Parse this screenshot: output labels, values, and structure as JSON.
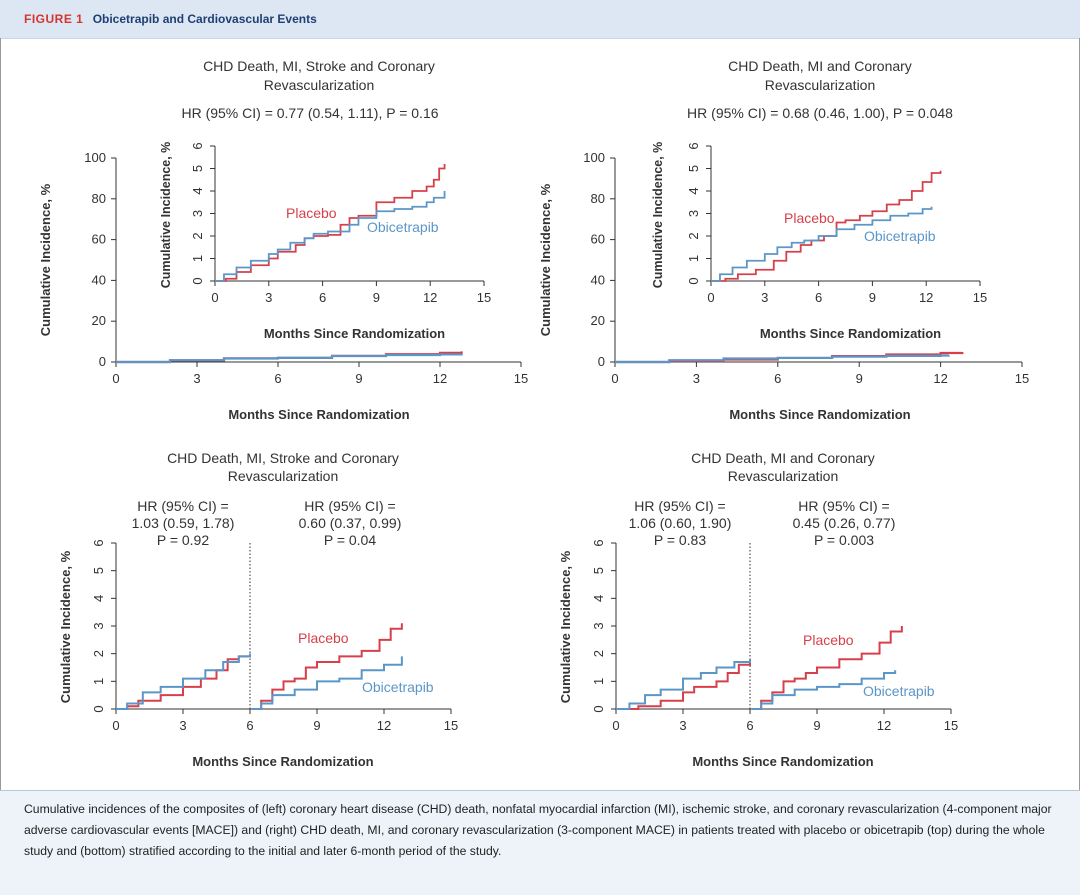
{
  "figure": {
    "label": "FIGURE 1",
    "title": "Obicetrapib and Cardiovascular Events",
    "caption": "Cumulative incidences of the composites of (left) coronary heart disease (CHD) death, nonfatal myocardial infarction (MI), ischemic stroke, and coronary revascularization (4-component major adverse cardiovascular events [MACE]) and (right) CHD death, MI, and coronary revascularization (3-component MACE) in patients treated with placebo or obicetrapib (top) during the whole study and (bottom) stratified according to the initial and later 6-month period of the study."
  },
  "colors": {
    "placebo": "#d6404a",
    "obicetrapib": "#5b96c8",
    "axis": "#333333",
    "title": "#1f3f73"
  },
  "chart_data": [
    {
      "id": "top-left",
      "type": "line",
      "title_lines": [
        "CHD Death, MI, Stroke and Coronary",
        "Revascularization"
      ],
      "hr_text": "HR (95% CI) = 0.77 (0.54, 1.11), P = 0.16",
      "xlabel": "Months Since Randomization",
      "ylabel": "Cumulative Incidence, %",
      "xlim": [
        0,
        15
      ],
      "ylim": [
        0,
        100
      ],
      "xticks": [
        0,
        3,
        6,
        9,
        12,
        15
      ],
      "yticks": [
        0,
        20,
        40,
        60,
        80,
        100
      ],
      "series": [
        {
          "name": "Placebo",
          "x": [
            0,
            2,
            4,
            6,
            8,
            10,
            12,
            12.8
          ],
          "y": [
            0,
            0.8,
            1.8,
            2.0,
            3.0,
            3.8,
            4.5,
            5.2
          ]
        },
        {
          "name": "Obicetrapib",
          "x": [
            0,
            2,
            4,
            6,
            8,
            10,
            12,
            12.8
          ],
          "y": [
            0,
            0.9,
            1.7,
            2.1,
            2.9,
            3.4,
            3.7,
            4.0
          ]
        }
      ],
      "inset": {
        "xlabel": "Months Since Randomization",
        "ylabel": "Cumulative Incidence, %",
        "xlim": [
          0,
          15
        ],
        "ylim": [
          0,
          6
        ],
        "xticks": [
          0,
          3,
          6,
          9,
          12,
          15
        ],
        "yticks": [
          0,
          1,
          2,
          3,
          4,
          5,
          6
        ],
        "series": [
          {
            "name": "Placebo",
            "x": [
              0,
              0.6,
              1.2,
              2.0,
              3.0,
              3.5,
              4.5,
              5.0,
              5.5,
              6.3,
              7.0,
              7.5,
              8.0,
              9.0,
              9.5,
              10.0,
              11.0,
              11.8,
              12.2,
              12.5,
              12.8
            ],
            "y": [
              0,
              0.1,
              0.4,
              0.7,
              1.0,
              1.3,
              1.6,
              1.9,
              2.0,
              2.05,
              2.5,
              2.8,
              2.9,
              3.5,
              3.5,
              3.7,
              4.0,
              4.2,
              4.5,
              5.0,
              5.2
            ]
          },
          {
            "name": "Obicetrapib",
            "x": [
              0,
              0.5,
              1.2,
              2.0,
              3.0,
              3.5,
              4.2,
              5.0,
              5.5,
              6.3,
              7.5,
              8.0,
              9.0,
              10.0,
              11.0,
              11.8,
              12.2,
              12.8
            ],
            "y": [
              0,
              0.3,
              0.6,
              0.9,
              1.2,
              1.4,
              1.7,
              1.9,
              2.1,
              2.2,
              2.5,
              2.8,
              3.1,
              3.2,
              3.3,
              3.5,
              3.7,
              4.0
            ]
          }
        ],
        "labels": [
          "Placebo",
          "Obicetrapib"
        ]
      }
    },
    {
      "id": "top-right",
      "type": "line",
      "title_lines": [
        "CHD Death, MI and Coronary",
        "Revascularization"
      ],
      "hr_text": "HR (95% CI) = 0.68 (0.46, 1.00), P = 0.048",
      "xlabel": "Months Since Randomization",
      "ylabel": "Cumulative Incidence, %",
      "xlim": [
        0,
        15
      ],
      "ylim": [
        0,
        100
      ],
      "xticks": [
        0,
        3,
        6,
        9,
        12,
        15
      ],
      "yticks": [
        0,
        20,
        40,
        60,
        80,
        100
      ],
      "series": [
        {
          "name": "Placebo",
          "x": [
            0,
            2,
            4,
            6,
            8,
            10,
            12,
            12.8
          ],
          "y": [
            0,
            0.5,
            1.2,
            2.0,
            2.9,
            3.7,
            4.4,
            4.9
          ]
        },
        {
          "name": "Obicetrapib",
          "x": [
            0,
            2,
            4,
            6,
            8,
            10,
            12,
            12.3
          ],
          "y": [
            0,
            0.9,
            1.7,
            2.0,
            2.6,
            3.0,
            3.2,
            3.3
          ]
        }
      ],
      "inset": {
        "xlabel": "Months Since Randomization",
        "ylabel": "Cumulative Incidence, %",
        "xlim": [
          0,
          15
        ],
        "ylim": [
          0,
          6
        ],
        "xticks": [
          0,
          3,
          6,
          9,
          12,
          15
        ],
        "yticks": [
          0,
          1,
          2,
          3,
          4,
          5,
          6
        ],
        "series": [
          {
            "name": "Placebo",
            "x": [
              0,
              0.8,
              1.5,
              2.5,
              3.5,
              4.2,
              5.0,
              5.6,
              6.3,
              7.0,
              7.5,
              8.3,
              9.0,
              9.8,
              10.5,
              11.2,
              11.8,
              12.3,
              12.8
            ],
            "y": [
              0,
              0.1,
              0.3,
              0.5,
              0.9,
              1.3,
              1.6,
              1.8,
              2.0,
              2.6,
              2.7,
              2.9,
              3.1,
              3.4,
              3.6,
              4.0,
              4.4,
              4.8,
              4.9
            ]
          },
          {
            "name": "Obicetrapib",
            "x": [
              0,
              0.5,
              1.2,
              2.0,
              3.0,
              3.7,
              4.5,
              5.2,
              6.0,
              7.0,
              8.0,
              9.0,
              10.0,
              11.0,
              11.8,
              12.3
            ],
            "y": [
              0,
              0.3,
              0.6,
              0.9,
              1.2,
              1.5,
              1.7,
              1.8,
              2.0,
              2.3,
              2.5,
              2.7,
              2.9,
              3.0,
              3.2,
              3.3
            ]
          }
        ],
        "labels": [
          "Placebo",
          "Obicetrapib"
        ]
      }
    },
    {
      "id": "bottom-left",
      "type": "line",
      "title_lines": [
        "CHD Death, MI, Stroke and Coronary",
        "Revascularization"
      ],
      "hr_periods": [
        [
          "HR (95% CI) =",
          "1.03 (0.59, 1.78)",
          "P = 0.92"
        ],
        [
          "HR (95% CI) =",
          "0.60 (0.37, 0.99)",
          "P = 0.04"
        ]
      ],
      "landmark_x": 6,
      "xlabel": "Months Since Randomization",
      "ylabel": "Cumulative Incidence, %",
      "xlim": [
        0,
        15
      ],
      "ylim": [
        0,
        6
      ],
      "xticks": [
        0,
        3,
        6,
        9,
        12,
        15
      ],
      "yticks": [
        0,
        1,
        2,
        3,
        4,
        5,
        6
      ],
      "series": [
        {
          "name": "Placebo",
          "x": [
            0,
            0.5,
            1.0,
            2.0,
            3.0,
            3.8,
            4.5,
            5.0,
            5.5,
            6.0,
            6.1,
            6.5,
            7.0,
            7.5,
            8.0,
            8.5,
            9.0,
            10.0,
            11.0,
            11.8,
            12.3,
            12.8
          ],
          "y": [
            0,
            0.1,
            0.3,
            0.5,
            0.8,
            1.1,
            1.4,
            1.8,
            1.9,
            2.0,
            0,
            0.3,
            0.7,
            1.0,
            1.1,
            1.5,
            1.7,
            1.9,
            2.1,
            2.5,
            2.9,
            3.1
          ]
        },
        {
          "name": "Obicetrapib",
          "x": [
            0,
            0.5,
            1.2,
            2.0,
            3.0,
            4.0,
            4.8,
            5.5,
            6.0,
            6.1,
            6.5,
            7.0,
            8.0,
            9.0,
            10.0,
            11.0,
            12.0,
            12.8
          ],
          "y": [
            0,
            0.2,
            0.6,
            0.8,
            1.1,
            1.4,
            1.7,
            1.9,
            2.0,
            0,
            0.2,
            0.5,
            0.7,
            1.0,
            1.1,
            1.4,
            1.6,
            1.9
          ]
        }
      ],
      "labels": [
        "Placebo",
        "Obicetrapib"
      ]
    },
    {
      "id": "bottom-right",
      "type": "line",
      "title_lines": [
        "CHD Death, MI and Coronary",
        "Revascularization"
      ],
      "hr_periods": [
        [
          "HR (95% CI) =",
          "1.06 (0.60, 1.90)",
          "P = 0.83"
        ],
        [
          "HR (95% CI) =",
          "0.45 (0.26, 0.77)",
          "P = 0.003"
        ]
      ],
      "landmark_x": 6,
      "xlabel": "Months Since Randomization",
      "ylabel": "Cumulative Incidence, %",
      "xlim": [
        0,
        15
      ],
      "ylim": [
        0,
        6
      ],
      "xticks": [
        0,
        3,
        6,
        9,
        12,
        15
      ],
      "yticks": [
        0,
        1,
        2,
        3,
        4,
        5,
        6
      ],
      "series": [
        {
          "name": "Placebo",
          "x": [
            0,
            1.0,
            2.0,
            3.0,
            3.5,
            4.5,
            5.0,
            5.5,
            6.0,
            6.1,
            6.5,
            7.0,
            7.5,
            8.0,
            8.5,
            9.0,
            10.0,
            11.0,
            11.8,
            12.3,
            12.8
          ],
          "y": [
            0,
            0.1,
            0.3,
            0.6,
            0.8,
            1.0,
            1.3,
            1.6,
            1.8,
            0,
            0.3,
            0.6,
            1.0,
            1.1,
            1.3,
            1.5,
            1.8,
            2.0,
            2.4,
            2.8,
            3.0
          ]
        },
        {
          "name": "Obicetrapib",
          "x": [
            0,
            0.6,
            1.3,
            2.0,
            3.0,
            3.8,
            4.5,
            5.3,
            6.0,
            6.1,
            6.5,
            7.0,
            8.0,
            9.0,
            10.0,
            11.0,
            12.0,
            12.5
          ],
          "y": [
            0,
            0.2,
            0.5,
            0.7,
            1.1,
            1.3,
            1.5,
            1.7,
            1.8,
            0,
            0.2,
            0.5,
            0.7,
            0.8,
            0.9,
            1.1,
            1.3,
            1.4
          ]
        }
      ],
      "labels": [
        "Placebo",
        "Obicetrapib"
      ]
    }
  ]
}
